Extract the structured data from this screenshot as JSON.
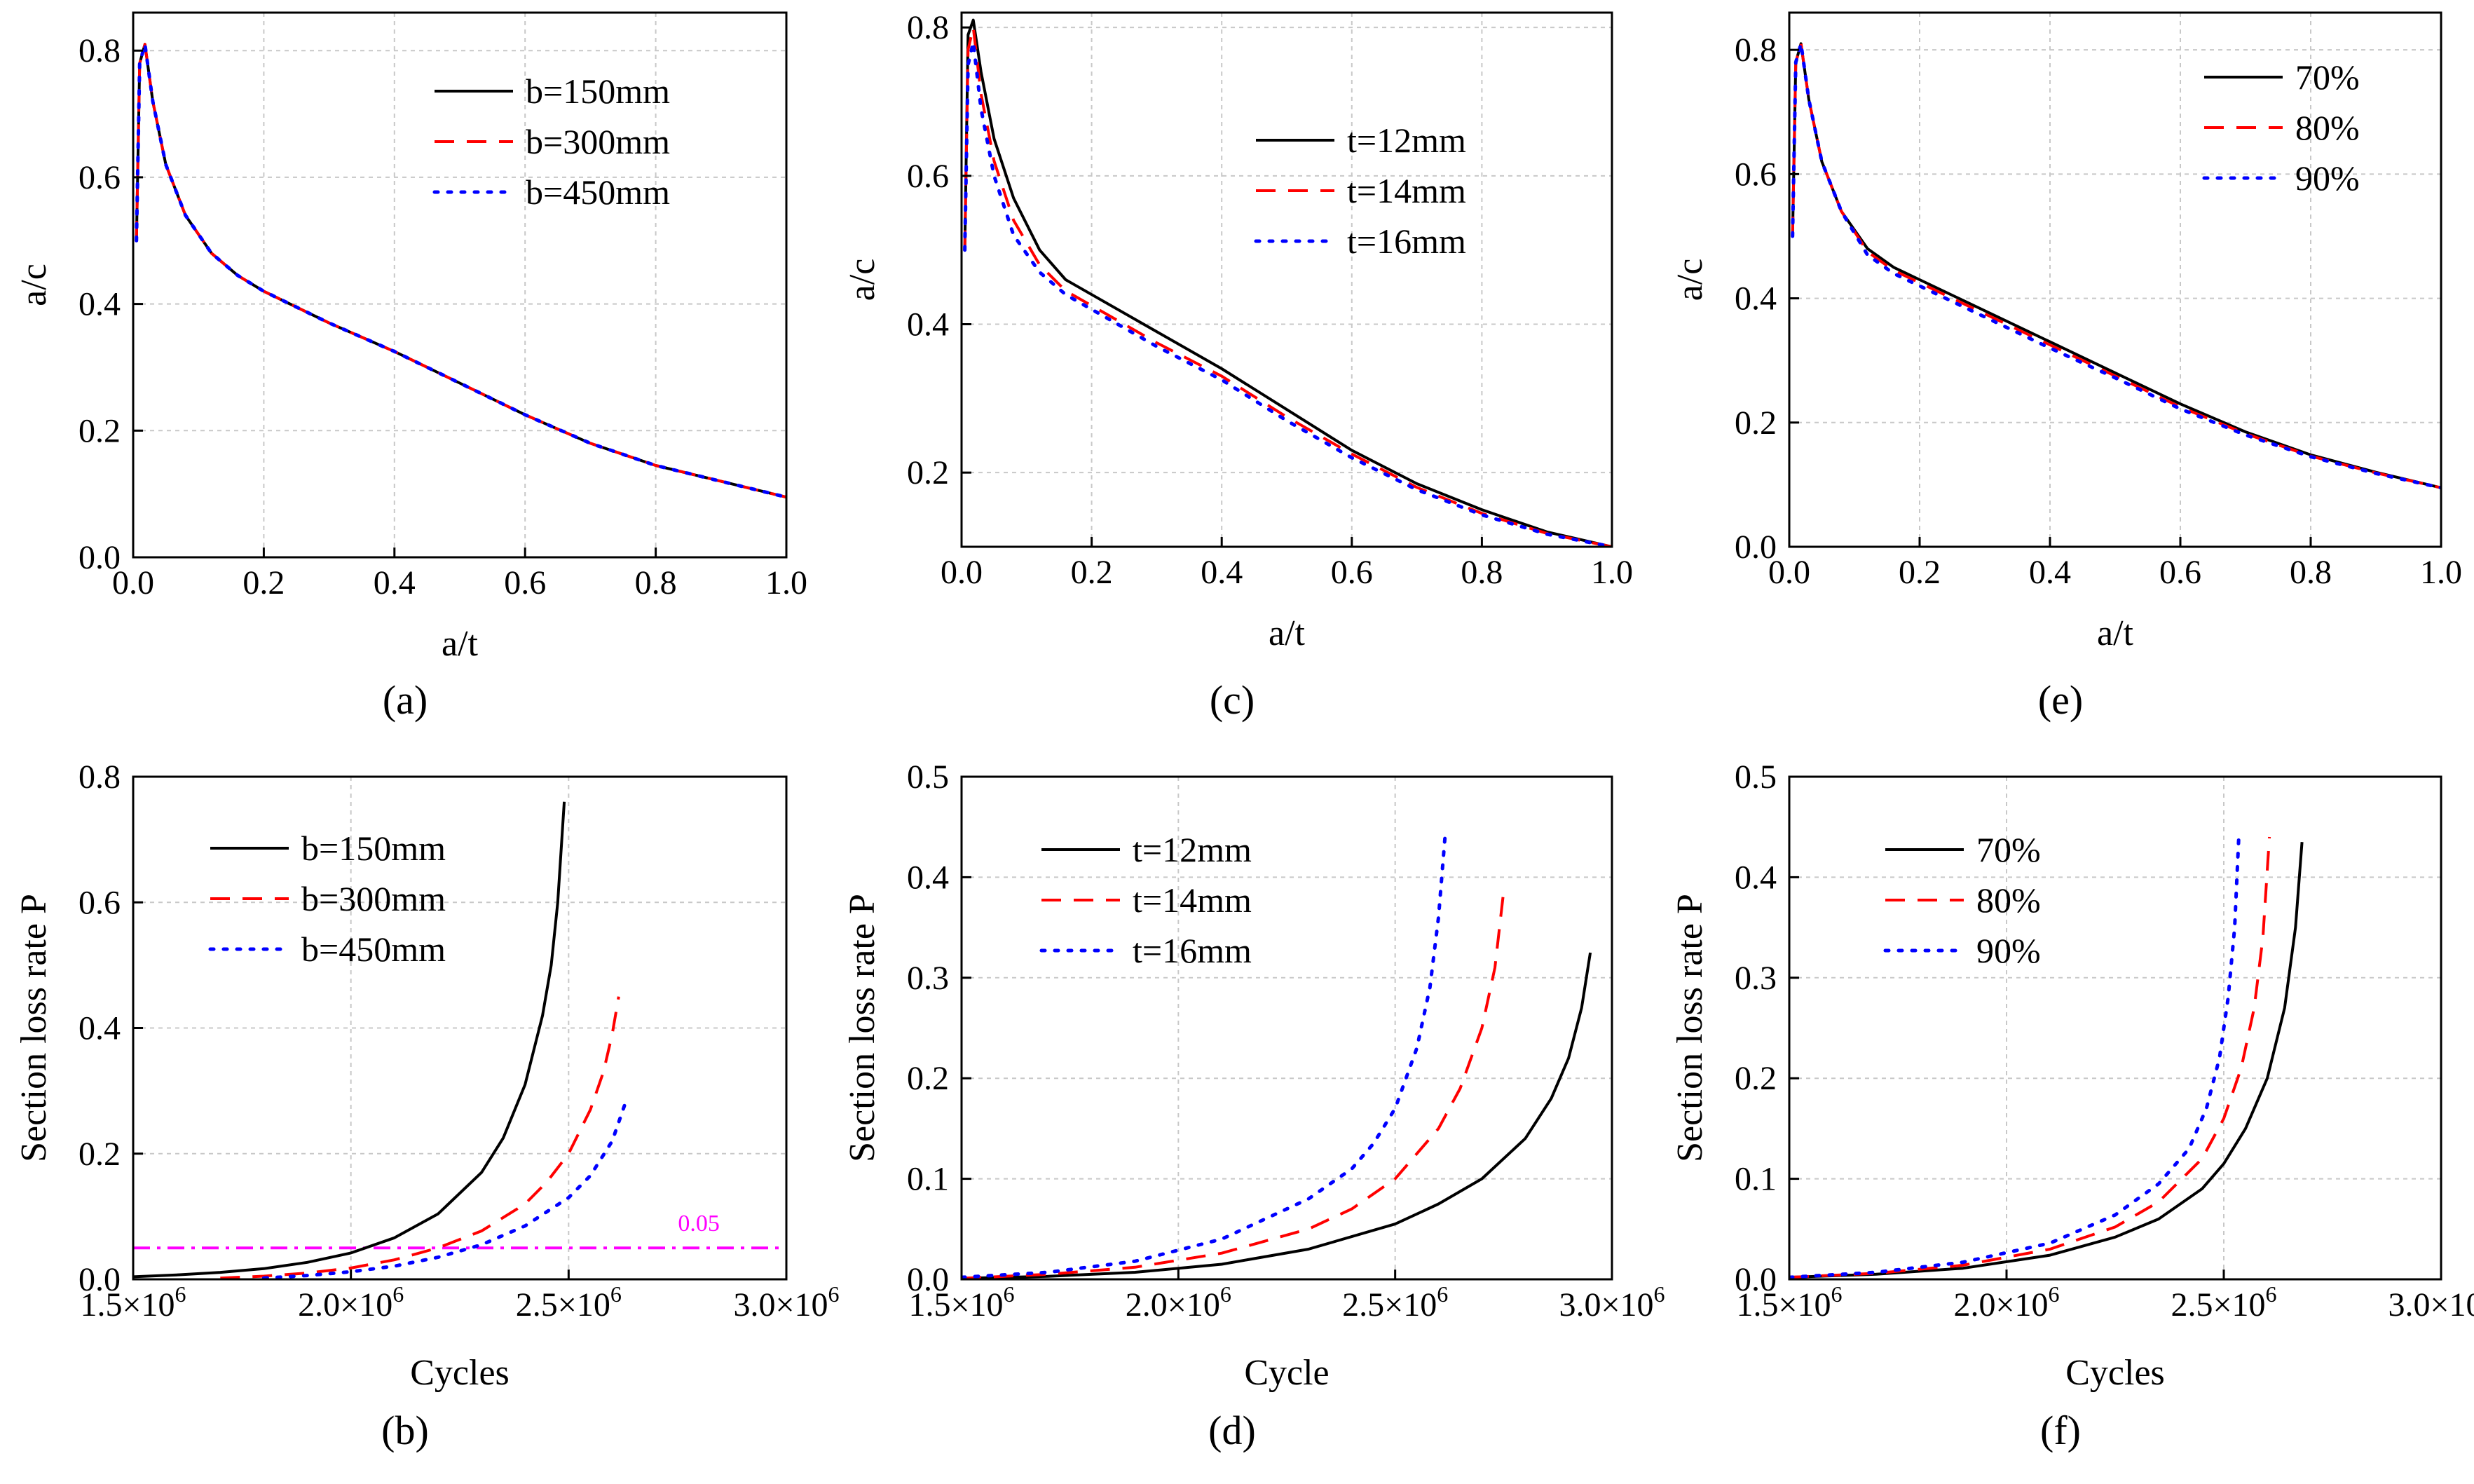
{
  "chart_data": [
    {
      "id": "a",
      "type": "line",
      "panel_label": "(a)",
      "xlabel": "a/t",
      "ylabel": "a/c",
      "xlim": [
        0,
        1
      ],
      "ylim": [
        0,
        0.86
      ],
      "xticks": [
        0,
        0.2,
        0.4,
        0.6,
        0.8,
        1.0
      ],
      "yticks": [
        0,
        0.2,
        0.4,
        0.6,
        0.8
      ],
      "xtick_labels": [
        "0.0",
        "0.2",
        "0.4",
        "0.6",
        "0.8",
        "1.0"
      ],
      "ytick_labels": [
        "0.0",
        "0.2",
        "0.4",
        "0.6",
        "0.8"
      ],
      "legend_position": "top-right",
      "series": [
        {
          "name": "b=150mm",
          "color": "#000000",
          "style": "solid",
          "x": [
            0.005,
            0.01,
            0.018,
            0.03,
            0.05,
            0.08,
            0.12,
            0.16,
            0.2,
            0.3,
            0.4,
            0.5,
            0.6,
            0.7,
            0.8,
            0.9,
            1.0
          ],
          "y": [
            0.5,
            0.78,
            0.81,
            0.72,
            0.62,
            0.54,
            0.48,
            0.445,
            0.42,
            0.37,
            0.325,
            0.275,
            0.225,
            0.18,
            0.145,
            0.12,
            0.095
          ]
        },
        {
          "name": "b=300mm",
          "color": "#ff0000",
          "style": "dashed",
          "x": [
            0.005,
            0.01,
            0.018,
            0.03,
            0.05,
            0.08,
            0.12,
            0.16,
            0.2,
            0.3,
            0.4,
            0.5,
            0.6,
            0.7,
            0.8,
            0.9,
            1.0
          ],
          "y": [
            0.5,
            0.78,
            0.81,
            0.72,
            0.62,
            0.54,
            0.48,
            0.445,
            0.42,
            0.37,
            0.325,
            0.275,
            0.225,
            0.18,
            0.145,
            0.12,
            0.095
          ]
        },
        {
          "name": "b=450mm",
          "color": "#0000ff",
          "style": "dotted",
          "x": [
            0.005,
            0.01,
            0.018,
            0.03,
            0.05,
            0.08,
            0.12,
            0.16,
            0.2,
            0.3,
            0.4,
            0.5,
            0.6,
            0.7,
            0.8,
            0.9,
            1.0
          ],
          "y": [
            0.5,
            0.78,
            0.81,
            0.72,
            0.62,
            0.54,
            0.48,
            0.445,
            0.42,
            0.37,
            0.325,
            0.275,
            0.225,
            0.18,
            0.145,
            0.12,
            0.095
          ]
        }
      ]
    },
    {
      "id": "c",
      "type": "line",
      "panel_label": "(c)",
      "xlabel": "a/t",
      "ylabel": "a/c",
      "xlim": [
        0,
        1
      ],
      "ylim": [
        0.1,
        0.82
      ],
      "xticks": [
        0,
        0.2,
        0.4,
        0.6,
        0.8,
        1.0
      ],
      "yticks": [
        0.2,
        0.4,
        0.6,
        0.8
      ],
      "xtick_labels": [
        "0.0",
        "0.2",
        "0.4",
        "0.6",
        "0.8",
        "1.0"
      ],
      "ytick_labels": [
        "0.2",
        "0.4",
        "0.6",
        "0.8"
      ],
      "legend_position": "top-right",
      "series": [
        {
          "name": "t=12mm",
          "color": "#000000",
          "style": "solid",
          "x": [
            0.005,
            0.01,
            0.018,
            0.03,
            0.05,
            0.08,
            0.12,
            0.16,
            0.2,
            0.3,
            0.4,
            0.5,
            0.6,
            0.7,
            0.8,
            0.9,
            1.0
          ],
          "y": [
            0.5,
            0.79,
            0.81,
            0.74,
            0.65,
            0.57,
            0.5,
            0.46,
            0.44,
            0.39,
            0.34,
            0.285,
            0.23,
            0.185,
            0.15,
            0.12,
            0.1
          ]
        },
        {
          "name": "t=14mm",
          "color": "#ff0000",
          "style": "dashed",
          "x": [
            0.005,
            0.01,
            0.018,
            0.03,
            0.05,
            0.08,
            0.12,
            0.16,
            0.2,
            0.3,
            0.4,
            0.5,
            0.6,
            0.7,
            0.8,
            0.9,
            1.0
          ],
          "y": [
            0.5,
            0.77,
            0.8,
            0.71,
            0.62,
            0.54,
            0.48,
            0.445,
            0.425,
            0.375,
            0.33,
            0.275,
            0.225,
            0.18,
            0.145,
            0.118,
            0.1
          ]
        },
        {
          "name": "t=16mm",
          "color": "#0000ff",
          "style": "dotted",
          "x": [
            0.005,
            0.01,
            0.018,
            0.03,
            0.05,
            0.08,
            0.12,
            0.16,
            0.2,
            0.3,
            0.4,
            0.5,
            0.6,
            0.7,
            0.8,
            0.9,
            1.0
          ],
          "y": [
            0.5,
            0.75,
            0.78,
            0.69,
            0.6,
            0.52,
            0.47,
            0.44,
            0.42,
            0.37,
            0.325,
            0.27,
            0.22,
            0.177,
            0.143,
            0.117,
            0.1
          ]
        }
      ]
    },
    {
      "id": "e",
      "type": "line",
      "panel_label": "(e)",
      "xlabel": "a/t",
      "ylabel": "a/c",
      "xlim": [
        0,
        1
      ],
      "ylim": [
        0,
        0.86
      ],
      "xticks": [
        0,
        0.2,
        0.4,
        0.6,
        0.8,
        1.0
      ],
      "yticks": [
        0,
        0.2,
        0.4,
        0.6,
        0.8
      ],
      "xtick_labels": [
        "0.0",
        "0.2",
        "0.4",
        "0.6",
        "0.8",
        "1.0"
      ],
      "ytick_labels": [
        "0.0",
        "0.2",
        "0.4",
        "0.6",
        "0.8"
      ],
      "legend_position": "top-right",
      "series": [
        {
          "name": "70%",
          "color": "#000000",
          "style": "solid",
          "x": [
            0.005,
            0.01,
            0.018,
            0.03,
            0.05,
            0.08,
            0.12,
            0.16,
            0.2,
            0.3,
            0.4,
            0.5,
            0.6,
            0.7,
            0.8,
            0.9,
            1.0
          ],
          "y": [
            0.5,
            0.78,
            0.81,
            0.72,
            0.62,
            0.54,
            0.48,
            0.45,
            0.43,
            0.38,
            0.33,
            0.28,
            0.23,
            0.185,
            0.148,
            0.12,
            0.095
          ]
        },
        {
          "name": "80%",
          "color": "#ff0000",
          "style": "dashed",
          "x": [
            0.005,
            0.01,
            0.018,
            0.03,
            0.05,
            0.08,
            0.12,
            0.16,
            0.2,
            0.3,
            0.4,
            0.5,
            0.6,
            0.7,
            0.8,
            0.9,
            1.0
          ],
          "y": [
            0.5,
            0.78,
            0.81,
            0.72,
            0.62,
            0.54,
            0.475,
            0.445,
            0.425,
            0.375,
            0.325,
            0.275,
            0.225,
            0.182,
            0.146,
            0.119,
            0.095
          ]
        },
        {
          "name": "90%",
          "color": "#0000ff",
          "style": "dotted",
          "x": [
            0.005,
            0.01,
            0.018,
            0.03,
            0.05,
            0.08,
            0.12,
            0.16,
            0.2,
            0.3,
            0.4,
            0.5,
            0.6,
            0.7,
            0.8,
            0.9,
            1.0
          ],
          "y": [
            0.5,
            0.78,
            0.81,
            0.72,
            0.62,
            0.54,
            0.47,
            0.44,
            0.42,
            0.37,
            0.32,
            0.272,
            0.222,
            0.18,
            0.145,
            0.118,
            0.095
          ]
        }
      ]
    },
    {
      "id": "b",
      "type": "line",
      "panel_label": "(b)",
      "xlabel": "Cycles",
      "ylabel": "Section loss rate P",
      "xlim": [
        1500000,
        3000000
      ],
      "ylim": [
        0,
        0.8
      ],
      "xticks": [
        1500000,
        2000000,
        2500000,
        3000000
      ],
      "yticks": [
        0,
        0.2,
        0.4,
        0.6,
        0.8
      ],
      "xtick_labels": [
        "1.5×10",
        "2.0×10",
        "2.5×10",
        "3.0×10"
      ],
      "xtick_exponent": "6",
      "ytick_labels": [
        "0.0",
        "0.2",
        "0.4",
        "0.6",
        "0.8"
      ],
      "legend_position": "top-left",
      "reference_line": {
        "y": 0.05,
        "label": "0.05",
        "color": "#ff00ff",
        "style": "dashdot"
      },
      "series": [
        {
          "name": "b=150mm",
          "color": "#000000",
          "style": "solid",
          "x": [
            1500000,
            1600000,
            1700000,
            1800000,
            1900000,
            2000000,
            2100000,
            2200000,
            2300000,
            2350000,
            2400000,
            2440000,
            2460000,
            2475000,
            2490000
          ],
          "y": [
            0.004,
            0.007,
            0.011,
            0.017,
            0.027,
            0.042,
            0.066,
            0.104,
            0.17,
            0.225,
            0.31,
            0.42,
            0.5,
            0.6,
            0.76
          ]
        },
        {
          "name": "b=300mm",
          "color": "#ff0000",
          "style": "dashed",
          "x": [
            1700000,
            1800000,
            1900000,
            2000000,
            2100000,
            2200000,
            2300000,
            2400000,
            2450000,
            2500000,
            2550000,
            2580000,
            2600000,
            2615000
          ],
          "y": [
            0.002,
            0.005,
            0.01,
            0.018,
            0.031,
            0.05,
            0.077,
            0.12,
            0.155,
            0.2,
            0.27,
            0.33,
            0.39,
            0.45
          ]
        },
        {
          "name": "b=450mm",
          "color": "#0000ff",
          "style": "dotted",
          "x": [
            1800000,
            1900000,
            2000000,
            2100000,
            2200000,
            2300000,
            2400000,
            2500000,
            2550000,
            2600000,
            2630000
          ],
          "y": [
            0.002,
            0.006,
            0.012,
            0.021,
            0.035,
            0.055,
            0.085,
            0.13,
            0.165,
            0.22,
            0.28
          ]
        }
      ]
    },
    {
      "id": "d",
      "type": "line",
      "panel_label": "(d)",
      "xlabel": "Cycle",
      "ylabel": "Section loss rate P",
      "xlim": [
        1500000,
        3000000
      ],
      "ylim": [
        0,
        0.5
      ],
      "xticks": [
        1500000,
        2000000,
        2500000,
        3000000
      ],
      "yticks": [
        0,
        0.1,
        0.2,
        0.3,
        0.4,
        0.5
      ],
      "xtick_labels": [
        "1.5×10",
        "2.0×10",
        "2.5×10",
        "3.0×10"
      ],
      "xtick_exponent": "6",
      "ytick_labels": [
        "0.0",
        "0.1",
        "0.2",
        "0.3",
        "0.4",
        "0.5"
      ],
      "legend_position": "top-left",
      "series": [
        {
          "name": "t=12mm",
          "color": "#000000",
          "style": "solid",
          "x": [
            1500000,
            1700000,
            1900000,
            2100000,
            2300000,
            2500000,
            2600000,
            2700000,
            2800000,
            2860000,
            2900000,
            2930000,
            2950000
          ],
          "y": [
            0.001,
            0.003,
            0.007,
            0.015,
            0.03,
            0.055,
            0.075,
            0.1,
            0.14,
            0.18,
            0.22,
            0.27,
            0.325
          ]
        },
        {
          "name": "t=14mm",
          "color": "#ff0000",
          "style": "dashed",
          "x": [
            1500000,
            1700000,
            1900000,
            2100000,
            2300000,
            2400000,
            2500000,
            2600000,
            2650000,
            2700000,
            2730000,
            2750000
          ],
          "y": [
            0.001,
            0.005,
            0.012,
            0.026,
            0.05,
            0.07,
            0.1,
            0.15,
            0.19,
            0.25,
            0.31,
            0.385
          ]
        },
        {
          "name": "t=16mm",
          "color": "#0000ff",
          "style": "dotted",
          "x": [
            1500000,
            1700000,
            1900000,
            2100000,
            2300000,
            2400000,
            2450000,
            2500000,
            2550000,
            2580000,
            2600000,
            2615000
          ],
          "y": [
            0.002,
            0.007,
            0.018,
            0.04,
            0.08,
            0.11,
            0.135,
            0.17,
            0.23,
            0.29,
            0.36,
            0.44
          ]
        }
      ]
    },
    {
      "id": "f",
      "type": "line",
      "panel_label": "(f)",
      "xlabel": "Cycles",
      "ylabel": "Section loss rate P",
      "xlim": [
        1500000,
        3000000
      ],
      "ylim": [
        0,
        0.5
      ],
      "xticks": [
        1500000,
        2000000,
        2500000,
        3000000
      ],
      "yticks": [
        0,
        0.1,
        0.2,
        0.3,
        0.4,
        0.5
      ],
      "xtick_labels": [
        "1.5×10",
        "2.0×10",
        "2.5×10",
        "3.0×10"
      ],
      "xtick_exponent": "6",
      "ytick_labels": [
        "0.0",
        "0.1",
        "0.2",
        "0.3",
        "0.4",
        "0.5"
      ],
      "legend_position": "top-left",
      "series": [
        {
          "name": "70%",
          "color": "#000000",
          "style": "solid",
          "x": [
            1500000,
            1700000,
            1900000,
            2100000,
            2250000,
            2350000,
            2450000,
            2500000,
            2550000,
            2600000,
            2640000,
            2665000,
            2680000
          ],
          "y": [
            0.002,
            0.005,
            0.011,
            0.024,
            0.042,
            0.06,
            0.09,
            0.115,
            0.15,
            0.2,
            0.27,
            0.35,
            0.435
          ]
        },
        {
          "name": "80%",
          "color": "#ff0000",
          "style": "dashed",
          "x": [
            1500000,
            1700000,
            1900000,
            2100000,
            2250000,
            2350000,
            2450000,
            2500000,
            2540000,
            2570000,
            2590000,
            2605000
          ],
          "y": [
            0.002,
            0.006,
            0.014,
            0.03,
            0.052,
            0.077,
            0.12,
            0.16,
            0.21,
            0.27,
            0.34,
            0.44
          ]
        },
        {
          "name": "90%",
          "color": "#0000ff",
          "style": "dotted",
          "x": [
            1500000,
            1700000,
            1900000,
            2100000,
            2250000,
            2350000,
            2420000,
            2460000,
            2490000,
            2510000,
            2525000,
            2535000
          ],
          "y": [
            0.002,
            0.007,
            0.017,
            0.036,
            0.064,
            0.095,
            0.13,
            0.17,
            0.22,
            0.28,
            0.35,
            0.445
          ]
        }
      ]
    }
  ]
}
